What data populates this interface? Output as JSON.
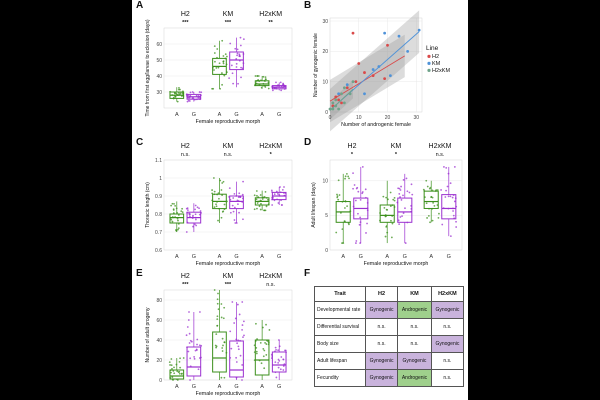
{
  "colors": {
    "A": "#3b8f1b",
    "G": "#9b30d0",
    "H2_line": "#d94a4a",
    "KM_line": "#4f92d8",
    "H2xKM_line": "#6fa38a",
    "gynogenic_cell": "#c9b3dc",
    "androgenic_cell": "#9fd08c"
  },
  "chart_data": [
    {
      "panel": "A",
      "type": "box",
      "ylabel": "Time from first egg/larvae to eclosion (days)",
      "xlabel": "Female reproductive morph",
      "ylim": [
        20,
        70
      ],
      "yticks": [
        30,
        40,
        50,
        60
      ],
      "groups": [
        {
          "line": "H2",
          "sig": "***",
          "boxes": [
            {
              "morph": "A",
              "q1": 26,
              "median": 28,
              "q3": 30,
              "whisker_low": 24,
              "whisker_high": 33
            },
            {
              "morph": "G",
              "q1": 25.5,
              "median": 27,
              "q3": 28.5,
              "whisker_low": 24,
              "whisker_high": 30
            }
          ]
        },
        {
          "line": "KM",
          "sig": "***",
          "boxes": [
            {
              "morph": "A",
              "q1": 41,
              "median": 46,
              "q3": 51,
              "whisker_low": 32,
              "whisker_high": 62
            },
            {
              "morph": "G",
              "q1": 44,
              "median": 50,
              "q3": 55,
              "whisker_low": 33,
              "whisker_high": 64
            }
          ]
        },
        {
          "line": "H2xKM",
          "sig": "**",
          "boxes": [
            {
              "morph": "A",
              "q1": 34,
              "median": 35,
              "q3": 37,
              "whisker_low": 32,
              "whisker_high": 40
            },
            {
              "morph": "G",
              "q1": 32,
              "median": 33,
              "q3": 34,
              "whisker_low": 31,
              "whisker_high": 36
            }
          ]
        }
      ]
    },
    {
      "panel": "B",
      "type": "scatter",
      "xlabel": "Number of androgenic female",
      "ylabel": "Number of gynogenic female",
      "xlim": [
        0,
        32
      ],
      "ylim": [
        0,
        31
      ],
      "xticks": [
        0,
        10,
        20,
        30
      ],
      "yticks": [
        0,
        10,
        20,
        30
      ],
      "legend_title": "Line",
      "legend_position": "right",
      "series": [
        {
          "name": "H2",
          "points": [
            [
              1,
              2
            ],
            [
              2,
              5
            ],
            [
              3,
              4
            ],
            [
              4,
              3
            ],
            [
              6,
              8
            ],
            [
              8,
              26
            ],
            [
              9,
              10
            ],
            [
              10,
              16
            ],
            [
              12,
              13
            ],
            [
              15,
              12
            ],
            [
              19,
              11
            ],
            [
              20,
              22
            ]
          ],
          "fit": [
            [
              0,
              3.6
            ],
            [
              26,
              18.5
            ]
          ]
        },
        {
          "name": "KM",
          "points": [
            [
              3,
              6
            ],
            [
              6,
              9
            ],
            [
              12,
              6
            ],
            [
              15,
              14
            ],
            [
              17,
              15
            ],
            [
              19,
              26
            ],
            [
              21,
              12
            ],
            [
              24,
              25
            ],
            [
              27,
              20
            ],
            [
              31,
              27
            ]
          ],
          "fit": [
            [
              0,
              0.6
            ],
            [
              31,
              26.5
            ]
          ]
        },
        {
          "name": "H2xKM",
          "points": [
            [
              0,
              1
            ],
            [
              1,
              1
            ],
            [
              1,
              3
            ],
            [
              2,
              2
            ],
            [
              2,
              4
            ],
            [
              3,
              1
            ],
            [
              4,
              6
            ],
            [
              5,
              3
            ],
            [
              5,
              8
            ],
            [
              7,
              6
            ],
            [
              8,
              10
            ]
          ],
          "fit": [
            [
              0,
              0.5
            ],
            [
              8,
              7.5
            ]
          ]
        }
      ]
    },
    {
      "panel": "C",
      "type": "box",
      "ylabel": "Thoracic length (cm)",
      "xlabel": "Female reproductive morph",
      "ylim": [
        0.6,
        1.1
      ],
      "yticks": [
        0.6,
        0.7,
        0.8,
        0.9,
        1.0,
        1.1
      ],
      "groups": [
        {
          "line": "H2",
          "sig": "n.s.",
          "boxes": [
            {
              "morph": "A",
              "q1": 0.75,
              "median": 0.78,
              "q3": 0.8,
              "whisker_low": 0.7,
              "whisker_high": 0.87
            },
            {
              "morph": "G",
              "q1": 0.75,
              "median": 0.78,
              "q3": 0.81,
              "whisker_low": 0.7,
              "whisker_high": 0.86
            }
          ]
        },
        {
          "line": "KM",
          "sig": "n.s.",
          "boxes": [
            {
              "morph": "A",
              "q1": 0.83,
              "median": 0.87,
              "q3": 0.91,
              "whisker_low": 0.75,
              "whisker_high": 1.0
            },
            {
              "morph": "G",
              "q1": 0.83,
              "median": 0.87,
              "q3": 0.9,
              "whisker_low": 0.75,
              "whisker_high": 0.98
            }
          ]
        },
        {
          "line": "H2xKM",
          "sig": "*",
          "boxes": [
            {
              "morph": "A",
              "q1": 0.85,
              "median": 0.87,
              "q3": 0.89,
              "whisker_low": 0.82,
              "whisker_high": 0.93
            },
            {
              "morph": "G",
              "q1": 0.88,
              "median": 0.9,
              "q3": 0.92,
              "whisker_low": 0.85,
              "whisker_high": 0.95
            }
          ]
        }
      ]
    },
    {
      "panel": "D",
      "type": "box",
      "ylabel": "Adult lifespan (days)",
      "xlabel": "Female reproductive morph",
      "ylim": [
        0,
        13
      ],
      "yticks": [
        0,
        5,
        10
      ],
      "groups": [
        {
          "line": "H2",
          "sig": "*",
          "boxes": [
            {
              "morph": "A",
              "q1": 4,
              "median": 5.5,
              "q3": 7,
              "whisker_low": 1,
              "whisker_high": 11
            },
            {
              "morph": "G",
              "q1": 4.5,
              "median": 6,
              "q3": 7.5,
              "whisker_low": 1,
              "whisker_high": 12
            }
          ]
        },
        {
          "line": "KM",
          "sig": "*",
          "boxes": [
            {
              "morph": "A",
              "q1": 4,
              "median": 5,
              "q3": 6.5,
              "whisker_low": 1,
              "whisker_high": 10
            },
            {
              "morph": "G",
              "q1": 4,
              "median": 5.5,
              "q3": 7.5,
              "whisker_low": 1,
              "whisker_high": 11
            }
          ]
        },
        {
          "line": "H2xKM",
          "sig": "n.s.",
          "boxes": [
            {
              "morph": "A",
              "q1": 6,
              "median": 7,
              "q3": 8.5,
              "whisker_low": 4,
              "whisker_high": 10
            },
            {
              "morph": "G",
              "q1": 4.5,
              "median": 6,
              "q3": 8,
              "whisker_low": 2,
              "whisker_high": 12
            }
          ]
        }
      ]
    },
    {
      "panel": "E",
      "type": "box",
      "ylabel": "Number of adult progeny",
      "xlabel": "Female reproductive morph",
      "ylim": [
        0,
        90
      ],
      "yticks": [
        0,
        20,
        40,
        60,
        80
      ],
      "groups": [
        {
          "line": "H2",
          "sig": "***",
          "boxes": [
            {
              "morph": "A",
              "q1": 1,
              "median": 4,
              "q3": 10,
              "whisker_low": 0,
              "whisker_high": 22
            },
            {
              "morph": "G",
              "q1": 4,
              "median": 13,
              "q3": 33,
              "whisker_low": 0,
              "whisker_high": 68
            }
          ]
        },
        {
          "line": "KM",
          "sig": "***",
          "boxes": [
            {
              "morph": "A",
              "q1": 8,
              "median": 22,
              "q3": 48,
              "whisker_low": 0,
              "whisker_high": 90
            },
            {
              "morph": "G",
              "q1": 3,
              "median": 10,
              "q3": 39,
              "whisker_low": 0,
              "whisker_high": 78
            }
          ]
        },
        {
          "line": "H2xKM",
          "sig": "n.s.",
          "boxes": [
            {
              "morph": "A",
              "q1": 5,
              "median": 20,
              "q3": 40,
              "whisker_low": 0,
              "whisker_high": 60
            },
            {
              "morph": "G",
              "q1": 8,
              "median": 15,
              "q3": 28,
              "whisker_low": 0,
              "whisker_high": 40
            }
          ]
        }
      ]
    }
  ],
  "table": {
    "panel": "F",
    "headers": [
      "Trait",
      "H2",
      "KM",
      "H2xKM"
    ],
    "rows": [
      {
        "trait": "Developmental rate",
        "H2": "Gynogenic",
        "KM": "Androgenic",
        "H2xKM": "Gynogenic"
      },
      {
        "trait": "Differential survival",
        "H2": "n.s.",
        "KM": "n.s.",
        "H2xKM": "n.s."
      },
      {
        "trait": "Body size",
        "H2": "n.s.",
        "KM": "n.s.",
        "H2xKM": "Gynogenic"
      },
      {
        "trait": "Adult lifespan",
        "H2": "Gynogenic",
        "KM": "Gynogenic",
        "H2xKM": "n.s."
      },
      {
        "trait": "Fecundity",
        "H2": "Gynogenic",
        "KM": "Androgenic",
        "H2xKM": "n.s."
      }
    ]
  }
}
